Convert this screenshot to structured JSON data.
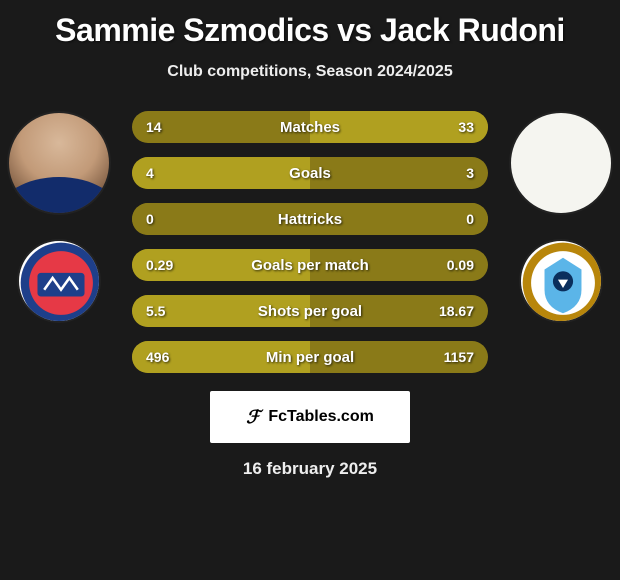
{
  "title": "Sammie Szmodics vs Jack Rudoni",
  "subtitle": "Club competitions, Season 2024/2025",
  "date": "16 february 2025",
  "footer_brand": "FcTables.com",
  "players": {
    "left": {
      "name": "Sammie Szmodics",
      "shirt_color": "#122c6b",
      "club_badge": {
        "bg": "#ffffff",
        "ring": "#1e3f8a",
        "inner": "#e63946",
        "accent": "#ffffff"
      }
    },
    "right": {
      "name": "Jack Rudoni",
      "shirt_color": "#5bb5e8",
      "photo_blank": true,
      "club_badge": {
        "bg": "#ffffff",
        "ring": "#b8860b",
        "inner": "#5bb5e8",
        "accent": "#0a2e5c"
      }
    }
  },
  "stats": {
    "bar_bg": "#8a7a18",
    "bar_highlight": "#b0a020",
    "text_color": "#ffffff",
    "label_fontsize": 15,
    "value_fontsize": 14,
    "rows": [
      {
        "label": "Matches",
        "left": "14",
        "right": "33",
        "winner": "right"
      },
      {
        "label": "Goals",
        "left": "4",
        "right": "3",
        "winner": "left"
      },
      {
        "label": "Hattricks",
        "left": "0",
        "right": "0",
        "winner": "tie"
      },
      {
        "label": "Goals per match",
        "left": "0.29",
        "right": "0.09",
        "winner": "left"
      },
      {
        "label": "Shots per goal",
        "left": "5.5",
        "right": "18.67",
        "winner": "left"
      },
      {
        "label": "Min per goal",
        "left": "496",
        "right": "1157",
        "winner": "left"
      }
    ]
  },
  "colors": {
    "page_bg": "#1a1a1a",
    "title_color": "#ffffff",
    "subtitle_color": "#eeeeee"
  }
}
